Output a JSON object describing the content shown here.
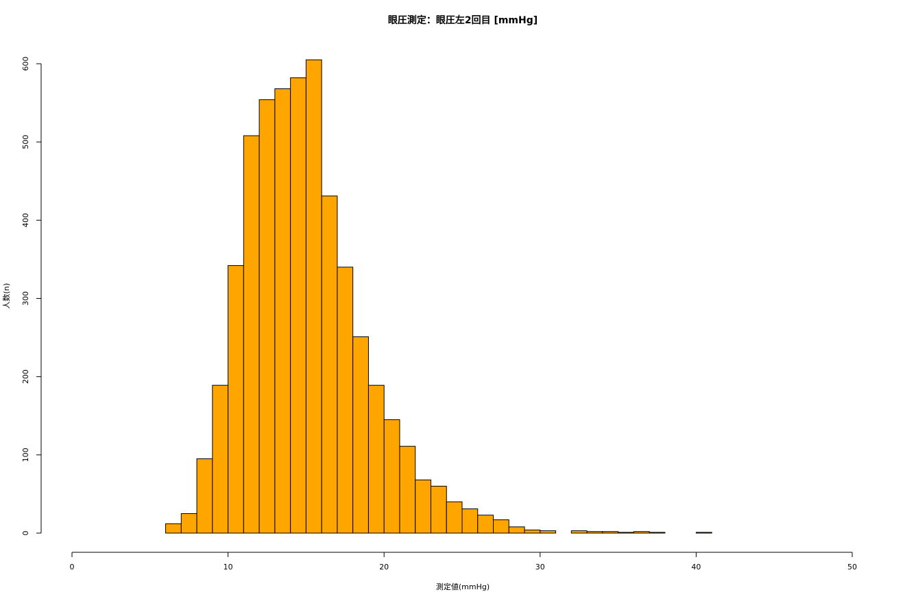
{
  "chart_data": {
    "type": "histogram",
    "title": "眼圧測定：眼圧左2回目 [mmHg]",
    "x_label": "測定値(mmHg)",
    "y_label": "人数(n)",
    "bins": [
      6,
      7,
      8,
      9,
      10,
      11,
      12,
      13,
      14,
      15,
      16,
      17,
      18,
      19,
      20,
      21,
      22,
      23,
      24,
      25,
      26,
      27,
      28,
      29,
      30,
      31,
      32,
      33,
      34,
      35,
      36,
      37,
      38,
      39,
      40,
      41
    ],
    "values": [
      12,
      25,
      95,
      189,
      342,
      508,
      554,
      568,
      582,
      605,
      431,
      340,
      251,
      189,
      145,
      111,
      68,
      60,
      40,
      31,
      23,
      17,
      8,
      4,
      3,
      0,
      3,
      2,
      2,
      1,
      2,
      1,
      0,
      0,
      1
    ],
    "color": "#ffa500",
    "xlim": [
      0,
      50
    ],
    "xticks": [
      0,
      10,
      20,
      30,
      40,
      50
    ],
    "ylim": [
      0,
      600
    ],
    "yticks": [
      0,
      100,
      200,
      300,
      400,
      500,
      600
    ]
  }
}
